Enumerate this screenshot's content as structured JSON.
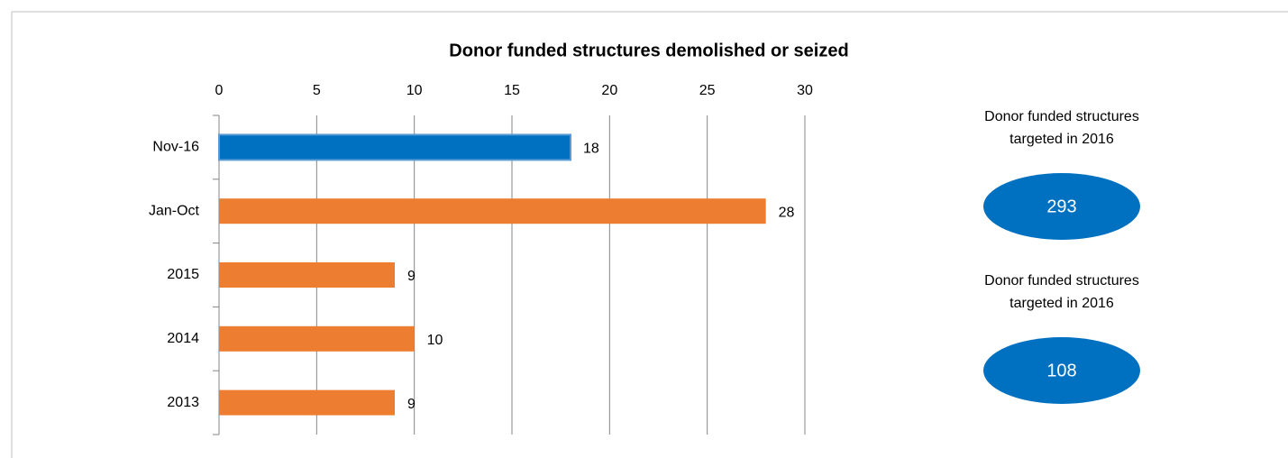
{
  "chart_data": {
    "type": "bar",
    "orientation": "horizontal",
    "title": "Donor funded structures demolished or seized",
    "categories": [
      "Nov-16",
      "Jan-Oct",
      "2015",
      "2014",
      "2013"
    ],
    "values": [
      18,
      28,
      9,
      10,
      9
    ],
    "colors": [
      "#0070c0",
      "#ed7d31",
      "#ed7d31",
      "#ed7d31",
      "#ed7d31"
    ],
    "xlim": [
      0,
      30
    ],
    "xticks": [
      0,
      5,
      10,
      15,
      20,
      25,
      30
    ],
    "grid": true,
    "annotations": [
      {
        "label_lines": [
          "Donor funded  structures",
          "targeted in 2016"
        ],
        "value": 293,
        "color": "#0070c0"
      },
      {
        "label_lines": [
          "Donor funded structures",
          "targeted in 2016"
        ],
        "value": 108,
        "color": "#0070c0"
      }
    ]
  }
}
